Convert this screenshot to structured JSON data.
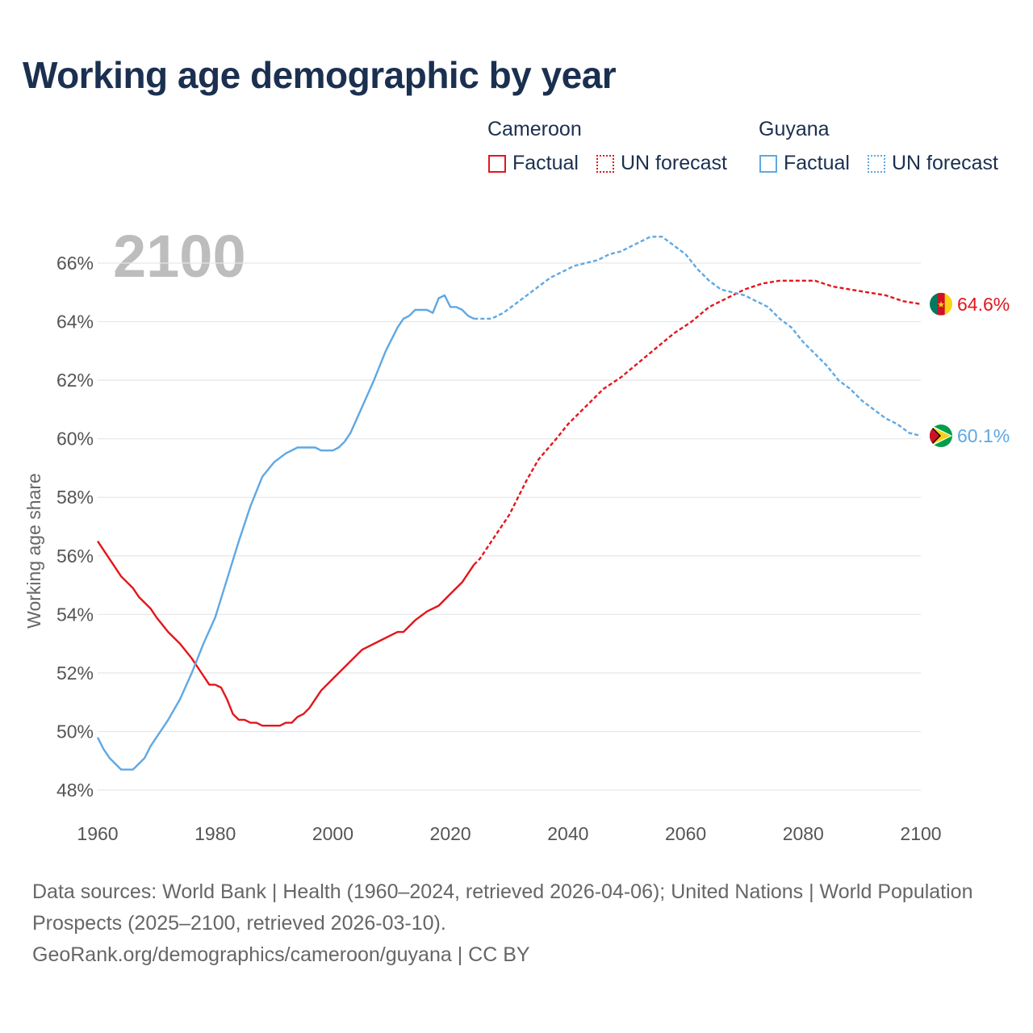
{
  "title": "Working age demographic by year",
  "legend": {
    "cameroon": {
      "name": "Cameroon",
      "factual": "Factual",
      "forecast": "UN forecast"
    },
    "guyana": {
      "name": "Guyana",
      "factual": "Factual",
      "forecast": "UN forecast"
    }
  },
  "colors": {
    "cameroon": "#e3161b",
    "guyana": "#5fa8e3",
    "grid": "#e6e6e6",
    "axis_text": "#555555",
    "year_watermark": "#bdbdbd"
  },
  "sources": {
    "line1": "Data sources: World Bank | Health (1960–2024, retrieved 2026-04-06); United Nations | World Population Prospects (2025–2100, retrieved 2026-03-10).",
    "line2": "GeoRank.org/demographics/cameroon/guyana | CC BY"
  },
  "chart_data": {
    "type": "line",
    "year_label": "2100",
    "ylabel": "Working age share",
    "xlabel": "",
    "xlim": [
      1960,
      2100
    ],
    "ylim": [
      47.5,
      67
    ],
    "x_ticks": [
      "1960",
      "1980",
      "2000",
      "2020",
      "2040",
      "2060",
      "2080",
      "2100"
    ],
    "x_tick_values": [
      1960,
      1980,
      2000,
      2020,
      2040,
      2060,
      2080,
      2100
    ],
    "y_ticks": [
      "48%",
      "50%",
      "52%",
      "54%",
      "56%",
      "58%",
      "60%",
      "62%",
      "64%",
      "66%"
    ],
    "y_tick_values": [
      48,
      50,
      52,
      54,
      56,
      58,
      60,
      62,
      64,
      66
    ],
    "forecast_start": 2024,
    "series": [
      {
        "name": "Cameroon",
        "color": "#e3161b",
        "end_label": "64.6%",
        "flag": "cameroon-flag",
        "x": [
          1960,
          1962,
          1964,
          1966,
          1967,
          1969,
          1970,
          1972,
          1974,
          1976,
          1978,
          1979,
          1980,
          1981,
          1982,
          1983,
          1984,
          1985,
          1986,
          1987,
          1988,
          1990,
          1991,
          1992,
          1993,
          1994,
          1995,
          1996,
          1998,
          2000,
          2003,
          2005,
          2008,
          2010,
          2011,
          2012,
          2014,
          2016,
          2018,
          2020,
          2022,
          2024,
          2025,
          2027,
          2030,
          2033,
          2035,
          2038,
          2040,
          2043,
          2046,
          2049,
          2052,
          2055,
          2058,
          2061,
          2064,
          2067,
          2070,
          2073,
          2076,
          2079,
          2082,
          2085,
          2088,
          2091,
          2094,
          2097,
          2100
        ],
        "y": [
          56.5,
          55.9,
          55.3,
          54.9,
          54.6,
          54.2,
          53.9,
          53.4,
          53.0,
          52.5,
          51.9,
          51.6,
          51.6,
          51.5,
          51.1,
          50.6,
          50.4,
          50.4,
          50.3,
          50.3,
          50.2,
          50.2,
          50.2,
          50.3,
          50.3,
          50.5,
          50.6,
          50.8,
          51.4,
          51.8,
          52.4,
          52.8,
          53.1,
          53.3,
          53.4,
          53.4,
          53.8,
          54.1,
          54.3,
          54.7,
          55.1,
          55.7,
          55.9,
          56.5,
          57.4,
          58.6,
          59.3,
          60.0,
          60.5,
          61.1,
          61.7,
          62.1,
          62.6,
          63.1,
          63.6,
          64.0,
          64.5,
          64.8,
          65.1,
          65.3,
          65.4,
          65.4,
          65.4,
          65.2,
          65.1,
          65.0,
          64.9,
          64.7,
          64.6
        ]
      },
      {
        "name": "Guyana",
        "color": "#5fa8e3",
        "end_label": "60.1%",
        "flag": "guyana-flag",
        "x": [
          1960,
          1961,
          1962,
          1963,
          1964,
          1965,
          1966,
          1968,
          1969,
          1970,
          1972,
          1974,
          1976,
          1978,
          1980,
          1982,
          1984,
          1986,
          1988,
          1990,
          1992,
          1994,
          1996,
          1997,
          1998,
          2000,
          2001,
          2002,
          2003,
          2005,
          2007,
          2009,
          2011,
          2012,
          2013,
          2014,
          2015,
          2016,
          2017,
          2018,
          2019,
          2020,
          2021,
          2022,
          2023,
          2024,
          2025,
          2027,
          2029,
          2031,
          2033,
          2035,
          2037,
          2039,
          2041,
          2043,
          2045,
          2047,
          2049,
          2051,
          2053,
          2054,
          2055,
          2056,
          2058,
          2060,
          2062,
          2064,
          2066,
          2068,
          2070,
          2072,
          2074,
          2076,
          2078,
          2080,
          2082,
          2084,
          2086,
          2088,
          2090,
          2092,
          2094,
          2096,
          2098,
          2100
        ],
        "y": [
          49.8,
          49.4,
          49.1,
          48.9,
          48.7,
          48.7,
          48.7,
          49.1,
          49.5,
          49.8,
          50.4,
          51.1,
          52.0,
          53.0,
          53.9,
          55.2,
          56.5,
          57.7,
          58.7,
          59.2,
          59.5,
          59.7,
          59.7,
          59.7,
          59.6,
          59.6,
          59.7,
          59.9,
          60.2,
          61.1,
          62.0,
          63.0,
          63.8,
          64.1,
          64.2,
          64.4,
          64.4,
          64.4,
          64.3,
          64.8,
          64.9,
          64.5,
          64.5,
          64.4,
          64.2,
          64.1,
          64.1,
          64.1,
          64.3,
          64.6,
          64.9,
          65.2,
          65.5,
          65.7,
          65.9,
          66.0,
          66.1,
          66.3,
          66.4,
          66.6,
          66.8,
          66.9,
          66.9,
          66.9,
          66.6,
          66.3,
          65.8,
          65.4,
          65.1,
          65.0,
          64.9,
          64.7,
          64.5,
          64.1,
          63.8,
          63.3,
          62.9,
          62.5,
          62.0,
          61.7,
          61.3,
          61.0,
          60.7,
          60.5,
          60.2,
          60.1
        ]
      }
    ]
  }
}
